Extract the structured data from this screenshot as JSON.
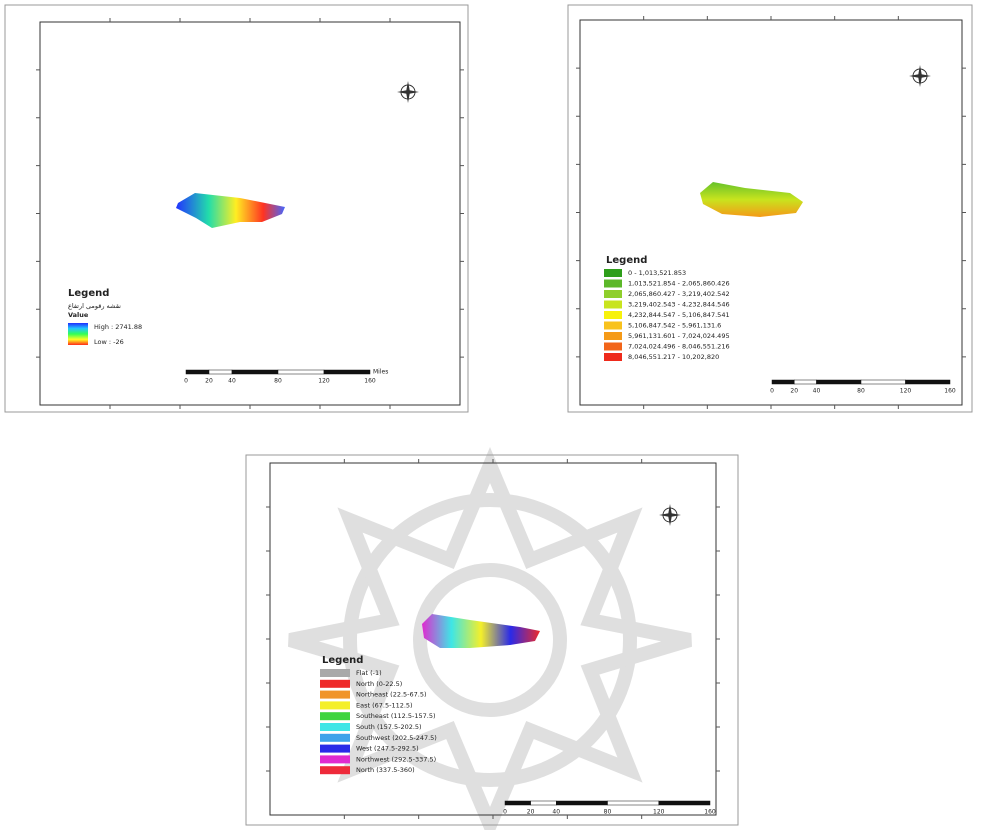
{
  "maps": [
    {
      "legend_title": "Legend",
      "legend_subtitle": "نقشه رقومی ارتفاع",
      "legend_heading": "Value",
      "ramp": {
        "high": "High : 2741.88",
        "low": "Low : -26",
        "colors": [
          "#1f2dff",
          "#22c7ff",
          "#33ff55",
          "#ffff22",
          "#ff2a1a"
        ]
      },
      "scale": {
        "ticks": [
          0,
          20,
          40,
          80,
          120,
          160
        ],
        "unit": "Miles"
      }
    },
    {
      "legend_title": "Legend",
      "items": [
        {
          "label": "0 - 1,013,521.853",
          "color": "#2e9e1a"
        },
        {
          "label": "1,013,521.854 - 2,065,860.426",
          "color": "#5cb82a"
        },
        {
          "label": "2,065,860.427 - 3,219,402.542",
          "color": "#8fcf2c"
        },
        {
          "label": "3,219,402.543 - 4,232,844.546",
          "color": "#c8e41e"
        },
        {
          "label": "4,232,844.547 - 5,106,847.541",
          "color": "#f7f20c"
        },
        {
          "label": "5,106,847.542 - 5,961,131.6",
          "color": "#f8c21d"
        },
        {
          "label": "5,961,131.601 - 7,024,024.495",
          "color": "#f59a18"
        },
        {
          "label": "7,024,024.496 - 8,046,551.216",
          "color": "#f2651a"
        },
        {
          "label": "8,046,551.217 - 10,202,820",
          "color": "#ee2a1b"
        }
      ],
      "scale": {
        "ticks": [
          0,
          20,
          40,
          80,
          120,
          160
        ]
      }
    },
    {
      "legend_title": "Legend",
      "items": [
        {
          "label": "Flat (-1)",
          "color": "#a9a9a9"
        },
        {
          "label": "North (0-22.5)",
          "color": "#ee2a2a"
        },
        {
          "label": "Northeast (22.5-67.5)",
          "color": "#f0952a"
        },
        {
          "label": "East (67.5-112.5)",
          "color": "#f4ef2a"
        },
        {
          "label": "Southeast (112.5-157.5)",
          "color": "#3ed43e"
        },
        {
          "label": "South (157.5-202.5)",
          "color": "#3ee6e6"
        },
        {
          "label": "Southwest (202.5-247.5)",
          "color": "#3ea2ea"
        },
        {
          "label": "West (247.5-292.5)",
          "color": "#2a2ae8"
        },
        {
          "label": "Northwest (292.5-337.5)",
          "color": "#e02ad0"
        },
        {
          "label": "North (337.5-360)",
          "color": "#ee2a3a"
        }
      ],
      "scale": {
        "ticks": [
          0,
          20,
          40,
          80,
          120,
          160
        ]
      }
    }
  ]
}
